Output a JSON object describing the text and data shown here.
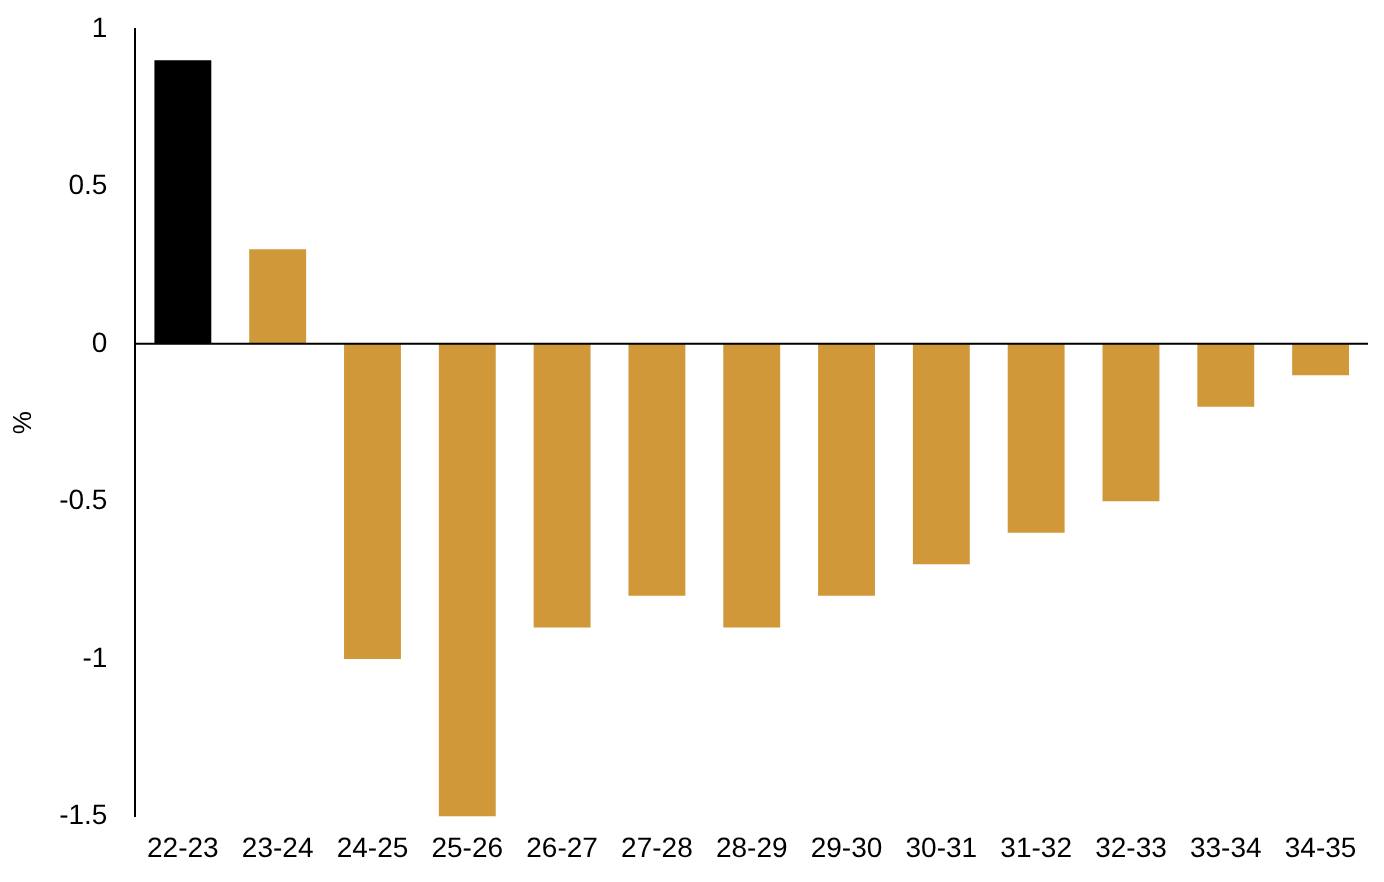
{
  "chart_data": {
    "type": "bar",
    "ylabel": "%",
    "categories": [
      "22-23",
      "23-24",
      "24-25",
      "25-26",
      "26-27",
      "27-28",
      "28-29",
      "29-30",
      "30-31",
      "31-32",
      "32-33",
      "33-34",
      "34-35"
    ],
    "values": [
      0.9,
      0.3,
      -1,
      -1.5,
      -0.9,
      -0.8,
      -0.9,
      -0.8,
      -0.7,
      -0.6,
      -0.5,
      -0.2,
      -0.1
    ],
    "colors": [
      "#000000",
      "#d09838",
      "#d09838",
      "#d09838",
      "#d09838",
      "#d09838",
      "#d09838",
      "#d09838",
      "#d09838",
      "#d09838",
      "#d09838",
      "#d09838",
      "#d09838"
    ],
    "ylim": [
      -1.5,
      1
    ],
    "yticks": [
      -1.5,
      -1,
      -0.5,
      0,
      0.5,
      1
    ],
    "grid": false,
    "legend": false,
    "ref_lines": [
      {
        "axis": "y",
        "value": 0,
        "color": "#000000"
      }
    ]
  }
}
